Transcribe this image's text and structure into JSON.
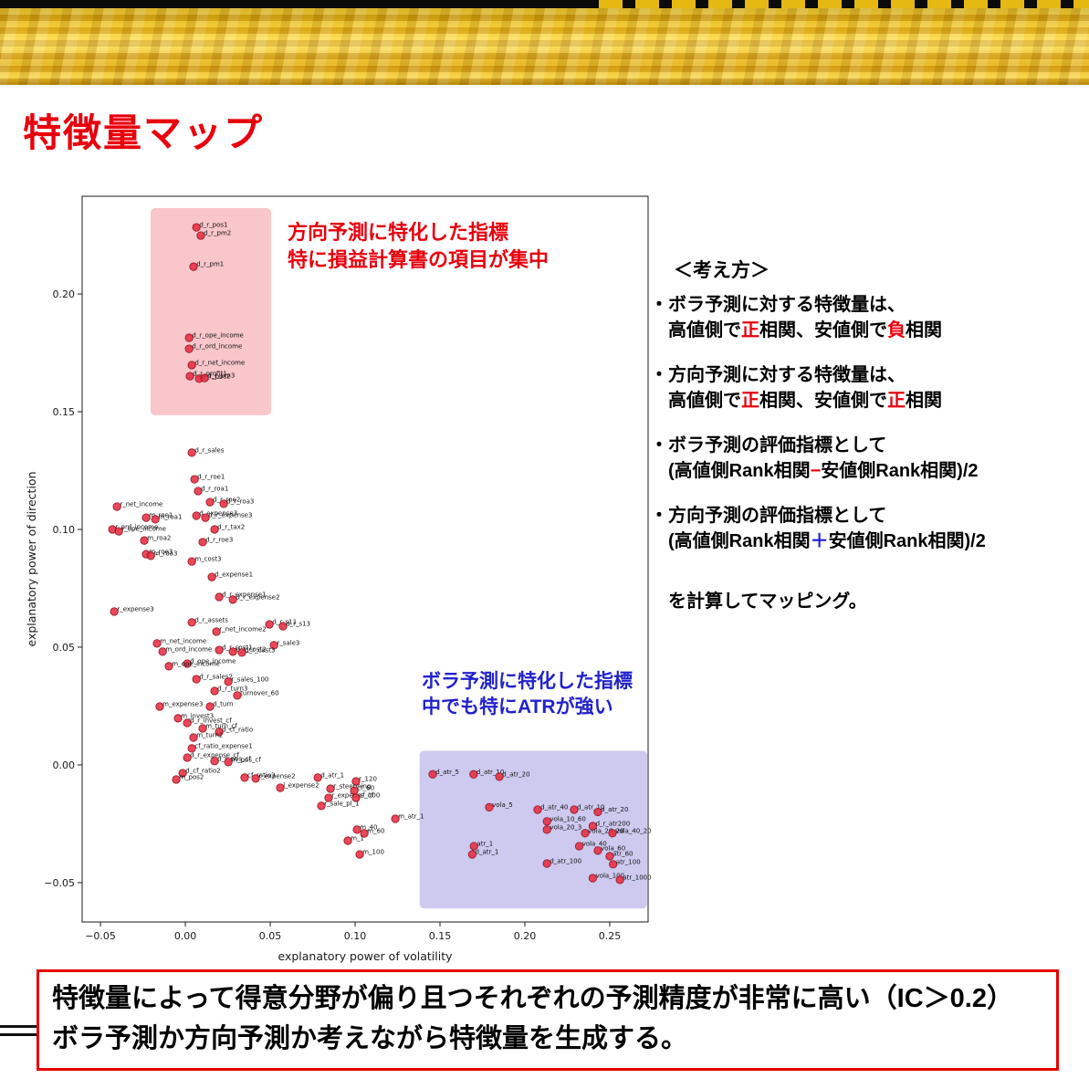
{
  "title": "特徴量マップ",
  "colors": {
    "accent_red": "#e8000d",
    "accent_blue": "#1b1bd4",
    "point_color": "#e8273d",
    "direction_region_color": "#f6b3ba",
    "volatility_region_color": "#b8b2e8"
  },
  "chart_data": {
    "type": "scatter",
    "xlabel": "explanatory power of volatility",
    "ylabel": "explanatory power of direction",
    "xlim": [
      -0.0608,
      0.2726
    ],
    "ylim": [
      -0.0667,
      0.2415
    ],
    "xticks": [
      -0.05,
      0.0,
      0.05,
      0.1,
      0.15,
      0.2,
      0.25
    ],
    "yticks": [
      -0.05,
      0.0,
      0.05,
      0.1,
      0.15,
      0.2
    ],
    "grid": false,
    "point_color": "#e8273d",
    "regions": [
      {
        "name": "direction-region",
        "x0": -0.0205,
        "x1": 0.0505,
        "y0": 0.1485,
        "y1": 0.2365,
        "color": "#f6b3ba",
        "opacity": 0.75
      },
      {
        "name": "volatility-region",
        "x0": 0.138,
        "x1": 0.272,
        "y0": -0.061,
        "y1": 0.006,
        "color": "#b8b2e8",
        "opacity": 0.7
      }
    ],
    "points": [
      {
        "label": "d_r_pos1",
        "x": 0.0065,
        "y": 0.2283
      },
      {
        "label": "d_r_pm2",
        "x": 0.0091,
        "y": 0.2248
      },
      {
        "label": "d_r_pm1",
        "x": 0.0048,
        "y": 0.2116
      },
      {
        "label": "d_r_ope_income",
        "x": 0.0022,
        "y": 0.1814
      },
      {
        "label": "d_r_ord_income",
        "x": 0.0022,
        "y": 0.1767
      },
      {
        "label": "d_r_net_income",
        "x": 0.0038,
        "y": 0.1698
      },
      {
        "label": "d_r_profit1",
        "x": 0.0027,
        "y": 0.1651
      },
      {
        "label": "d_r_pos2",
        "x": 0.0081,
        "y": 0.164
      },
      {
        "label": "d_r_pm3",
        "x": 0.0113,
        "y": 0.1643
      },
      {
        "label": "d_r_sales",
        "x": 0.0038,
        "y": 0.1326
      },
      {
        "label": "d_r_roe1",
        "x": 0.0054,
        "y": 0.1213
      },
      {
        "label": "d_r_roa1",
        "x": 0.0075,
        "y": 0.1163
      },
      {
        "label": "d_r_roe2",
        "x": 0.0145,
        "y": 0.1116
      },
      {
        "label": "d_r_roa3",
        "x": 0.0226,
        "y": 0.1109
      },
      {
        "label": "r_net_income",
        "x": -0.0403,
        "y": 0.1097
      },
      {
        "label": "m_roe1",
        "x": -0.0231,
        "y": 0.105
      },
      {
        "label": "m_roa1",
        "x": -0.0177,
        "y": 0.1043
      },
      {
        "label": "d_expense3",
        "x": 0.0065,
        "y": 0.1058
      },
      {
        "label": "d_r_expense3",
        "x": 0.0118,
        "y": 0.105
      },
      {
        "label": "r_ord_income",
        "x": -0.043,
        "y": 0.1
      },
      {
        "label": "r_ope_income",
        "x": -0.0392,
        "y": 0.0992
      },
      {
        "label": "m_roa2",
        "x": -0.0242,
        "y": 0.0953
      },
      {
        "label": "d_r_tax2",
        "x": 0.0172,
        "y": 0.1
      },
      {
        "label": "d_r_roe3",
        "x": 0.0102,
        "y": 0.0946
      },
      {
        "label": "m_roe3",
        "x": -0.0231,
        "y": 0.0895
      },
      {
        "label": "m_roa3",
        "x": -0.0204,
        "y": 0.0888
      },
      {
        "label": "m_cost3",
        "x": 0.0038,
        "y": 0.0864
      },
      {
        "label": "d_expense1",
        "x": 0.0156,
        "y": 0.0798
      },
      {
        "label": "d_r_expense1",
        "x": 0.0199,
        "y": 0.0713
      },
      {
        "label": "d_r_expense2",
        "x": 0.028,
        "y": 0.0702
      },
      {
        "label": "r_expense3",
        "x": -0.0419,
        "y": 0.0651
      },
      {
        "label": "d_r_assets",
        "x": 0.0038,
        "y": 0.0605
      },
      {
        "label": "d_r_s11",
        "x": 0.0495,
        "y": 0.0597
      },
      {
        "label": "d_r_s13",
        "x": 0.0575,
        "y": 0.0589
      },
      {
        "label": "r_net_income2",
        "x": 0.0183,
        "y": 0.0566
      },
      {
        "label": "r_sale3",
        "x": 0.0522,
        "y": 0.0508
      },
      {
        "label": "m_net_income",
        "x": -0.0167,
        "y": 0.0516
      },
      {
        "label": "d_r_cost1",
        "x": 0.0199,
        "y": 0.0488
      },
      {
        "label": "d_r_cost2",
        "x": 0.028,
        "y": 0.0481
      },
      {
        "label": "d_r_cost3",
        "x": 0.0333,
        "y": 0.0477
      },
      {
        "label": "m_ord_income",
        "x": -0.0134,
        "y": 0.0481
      },
      {
        "label": "d_ope_income",
        "x": 0.0011,
        "y": 0.043
      },
      {
        "label": "m_ope_income",
        "x": -0.0097,
        "y": 0.0419
      },
      {
        "label": "d_r_sales2",
        "x": 0.0065,
        "y": 0.0364
      },
      {
        "label": "r_sales_100",
        "x": 0.0253,
        "y": 0.0353
      },
      {
        "label": "d_r_turn3",
        "x": 0.0172,
        "y": 0.0314
      },
      {
        "label": "turnover_60",
        "x": 0.0306,
        "y": 0.0295
      },
      {
        "label": "m_expense3",
        "x": -0.0151,
        "y": 0.0248
      },
      {
        "label": "d_turn",
        "x": 0.0145,
        "y": 0.0248
      },
      {
        "label": "m_invest3",
        "x": -0.0043,
        "y": 0.0198
      },
      {
        "label": "d_r_invest_cf",
        "x": 0.0011,
        "y": 0.0178
      },
      {
        "label": "m_turn_cf",
        "x": 0.0102,
        "y": 0.0155
      },
      {
        "label": "d_cf_ratio",
        "x": 0.0199,
        "y": 0.014
      },
      {
        "label": "m_turn2",
        "x": 0.0048,
        "y": 0.0116
      },
      {
        "label": "cf_ratio_expense1",
        "x": 0.0038,
        "y": 0.007
      },
      {
        "label": "d_r_expense_cf",
        "x": 0.0011,
        "y": 0.0031
      },
      {
        "label": "d_r_pos_cf",
        "x": 0.0172,
        "y": 0.0016
      },
      {
        "label": "m_pos_cf",
        "x": 0.0253,
        "y": 0.0012
      },
      {
        "label": "d_cf_ratio2",
        "x": -0.0016,
        "y": -0.0035
      },
      {
        "label": "m_pos2",
        "x": -0.0054,
        "y": -0.0062
      },
      {
        "label": "cf_ratio3",
        "x": 0.0349,
        "y": -0.0054
      },
      {
        "label": "r_expense2",
        "x": 0.0414,
        "y": -0.0058
      },
      {
        "label": "d_atr_1",
        "x": 0.078,
        "y": -0.0054
      },
      {
        "label": "r_120",
        "x": 0.1005,
        "y": -0.007
      },
      {
        "label": "l_expense2",
        "x": 0.0559,
        "y": -0.0097
      },
      {
        "label": "r_steepning",
        "x": 0.0855,
        "y": -0.0101
      },
      {
        "label": "cf_60",
        "x": 0.0995,
        "y": -0.0109
      },
      {
        "label": "r_expense_cf",
        "x": 0.0844,
        "y": -0.014
      },
      {
        "label": "cf_100",
        "x": 0.1005,
        "y": -0.014
      },
      {
        "label": "r_sale_pl_1",
        "x": 0.0801,
        "y": -0.0174
      },
      {
        "label": "m_atr_1",
        "x": 0.1237,
        "y": -0.0229
      },
      {
        "label": "m_40",
        "x": 0.1011,
        "y": -0.0275
      },
      {
        "label": "m_60",
        "x": 0.1054,
        "y": -0.0291
      },
      {
        "label": "m_1",
        "x": 0.0957,
        "y": -0.0322
      },
      {
        "label": "m_100",
        "x": 0.1027,
        "y": -0.038
      },
      {
        "label": "d_atr_5",
        "x": 0.1457,
        "y": -0.004
      },
      {
        "label": "d_atr_10",
        "x": 0.1698,
        "y": -0.004
      },
      {
        "label": "d_atr_20",
        "x": 0.185,
        "y": -0.005
      },
      {
        "label": "vola_5",
        "x": 0.179,
        "y": -0.018
      },
      {
        "label": "d_atr_40",
        "x": 0.2075,
        "y": -0.019
      },
      {
        "label": "d_atr_10",
        "x": 0.229,
        "y": -0.019
      },
      {
        "label": "d_atr_20",
        "x": 0.243,
        "y": -0.02
      },
      {
        "label": "vola_10_60",
        "x": 0.213,
        "y": -0.024
      },
      {
        "label": "vola_20_3",
        "x": 0.213,
        "y": -0.0275
      },
      {
        "label": "d_r_atr200",
        "x": 0.24,
        "y": -0.026
      },
      {
        "label": "vola_20_20",
        "x": 0.2355,
        "y": -0.029
      },
      {
        "label": "vola_40_20",
        "x": 0.2516,
        "y": -0.029
      },
      {
        "label": "vola_40",
        "x": 0.232,
        "y": -0.0345
      },
      {
        "label": "atr_1",
        "x": 0.17,
        "y": -0.0345
      },
      {
        "label": "d_atr_1",
        "x": 0.169,
        "y": -0.038
      },
      {
        "label": "vola_60",
        "x": 0.243,
        "y": -0.0364
      },
      {
        "label": "atr_60",
        "x": 0.25,
        "y": -0.0388
      },
      {
        "label": "d_atr_100",
        "x": 0.213,
        "y": -0.0419
      },
      {
        "label": "atr_100",
        "x": 0.252,
        "y": -0.0422
      },
      {
        "label": "vola_100",
        "x": 0.24,
        "y": -0.0481
      },
      {
        "label": "atr_1000",
        "x": 0.256,
        "y": -0.0488
      }
    ]
  },
  "annotations": {
    "direction": {
      "color": "#e8000d",
      "lines": [
        "方向予測に特化した指標",
        "特に損益計算書の項目が集中"
      ]
    },
    "volatility": {
      "color": "#2222cc",
      "lines": [
        "ボラ予測に特化した指標",
        "中でも特にATRが強い"
      ]
    }
  },
  "explanation": {
    "heading": "＜考え方＞",
    "paragraphs": [
      {
        "lines": [
          [
            {
              "t": "・ボラ予測に対する特徴量は、"
            }
          ],
          [
            {
              "t": "　高値側で"
            },
            {
              "t": "正",
              "c": "#e8000d"
            },
            {
              "t": "相関、安値側で"
            },
            {
              "t": "負",
              "c": "#e8000d"
            },
            {
              "t": "相関"
            }
          ]
        ]
      },
      {
        "lines": [
          [
            {
              "t": "・方向予測に対する特徴量は、"
            }
          ],
          [
            {
              "t": "　高値側で"
            },
            {
              "t": "正",
              "c": "#e8000d"
            },
            {
              "t": "相関、安値側で"
            },
            {
              "t": "正",
              "c": "#e8000d"
            },
            {
              "t": "相関"
            }
          ]
        ]
      },
      {
        "lines": [
          [
            {
              "t": "・ボラ予測の評価指標として"
            }
          ],
          [
            {
              "t": "　(高値側Rank相関"
            },
            {
              "t": "−",
              "c": "#e8000d"
            },
            {
              "t": "安値側Rank相関)/2"
            }
          ]
        ]
      },
      {
        "lines": [
          [
            {
              "t": "・方向予測の評価指標として"
            }
          ],
          [
            {
              "t": "　(高値側Rank相関"
            },
            {
              "t": "＋",
              "c": "#1b1bd4"
            },
            {
              "t": "安値側Rank相関)/2"
            }
          ]
        ]
      },
      {
        "extra_gap": true,
        "lines": [
          [
            {
              "t": "　を計算してマッピング。"
            }
          ]
        ]
      }
    ]
  },
  "footer": {
    "lines": [
      "特徴量によって得意分野が偏り且つそれぞれの予測精度が非常に高い（IC＞0.2）",
      "ボラ予測か方向予測か考えながら特徴量を生成する。"
    ]
  }
}
